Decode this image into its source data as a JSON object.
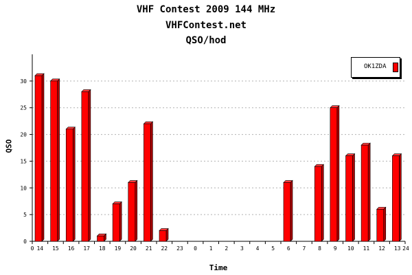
{
  "chart_data": {
    "type": "bar",
    "title": "VHF Contest 2009 144 MHz",
    "subtitle": "VHFContest.net",
    "subtitle2": "QSO/hod",
    "xlabel": "Time",
    "ylabel": "QSO",
    "ylim": [
      0,
      35
    ],
    "yticks": [
      0,
      5,
      10,
      15,
      20,
      25,
      30
    ],
    "x_edge_start": "0",
    "x_edge_end": "24",
    "grid": true,
    "legend_position": "top-right",
    "categories": [
      "14",
      "15",
      "16",
      "17",
      "18",
      "19",
      "20",
      "21",
      "22",
      "23",
      "0",
      "1",
      "2",
      "3",
      "4",
      "5",
      "6",
      "7",
      "8",
      "9",
      "10",
      "11",
      "12",
      "13"
    ],
    "series": [
      {
        "name": "OK1ZDA",
        "color": "#ff0000",
        "values": [
          31,
          30,
          21,
          28,
          1,
          7,
          11,
          22,
          2,
          0,
          0,
          0,
          0,
          0,
          0,
          0,
          11,
          0,
          14,
          25,
          16,
          18,
          6,
          16
        ]
      }
    ]
  }
}
